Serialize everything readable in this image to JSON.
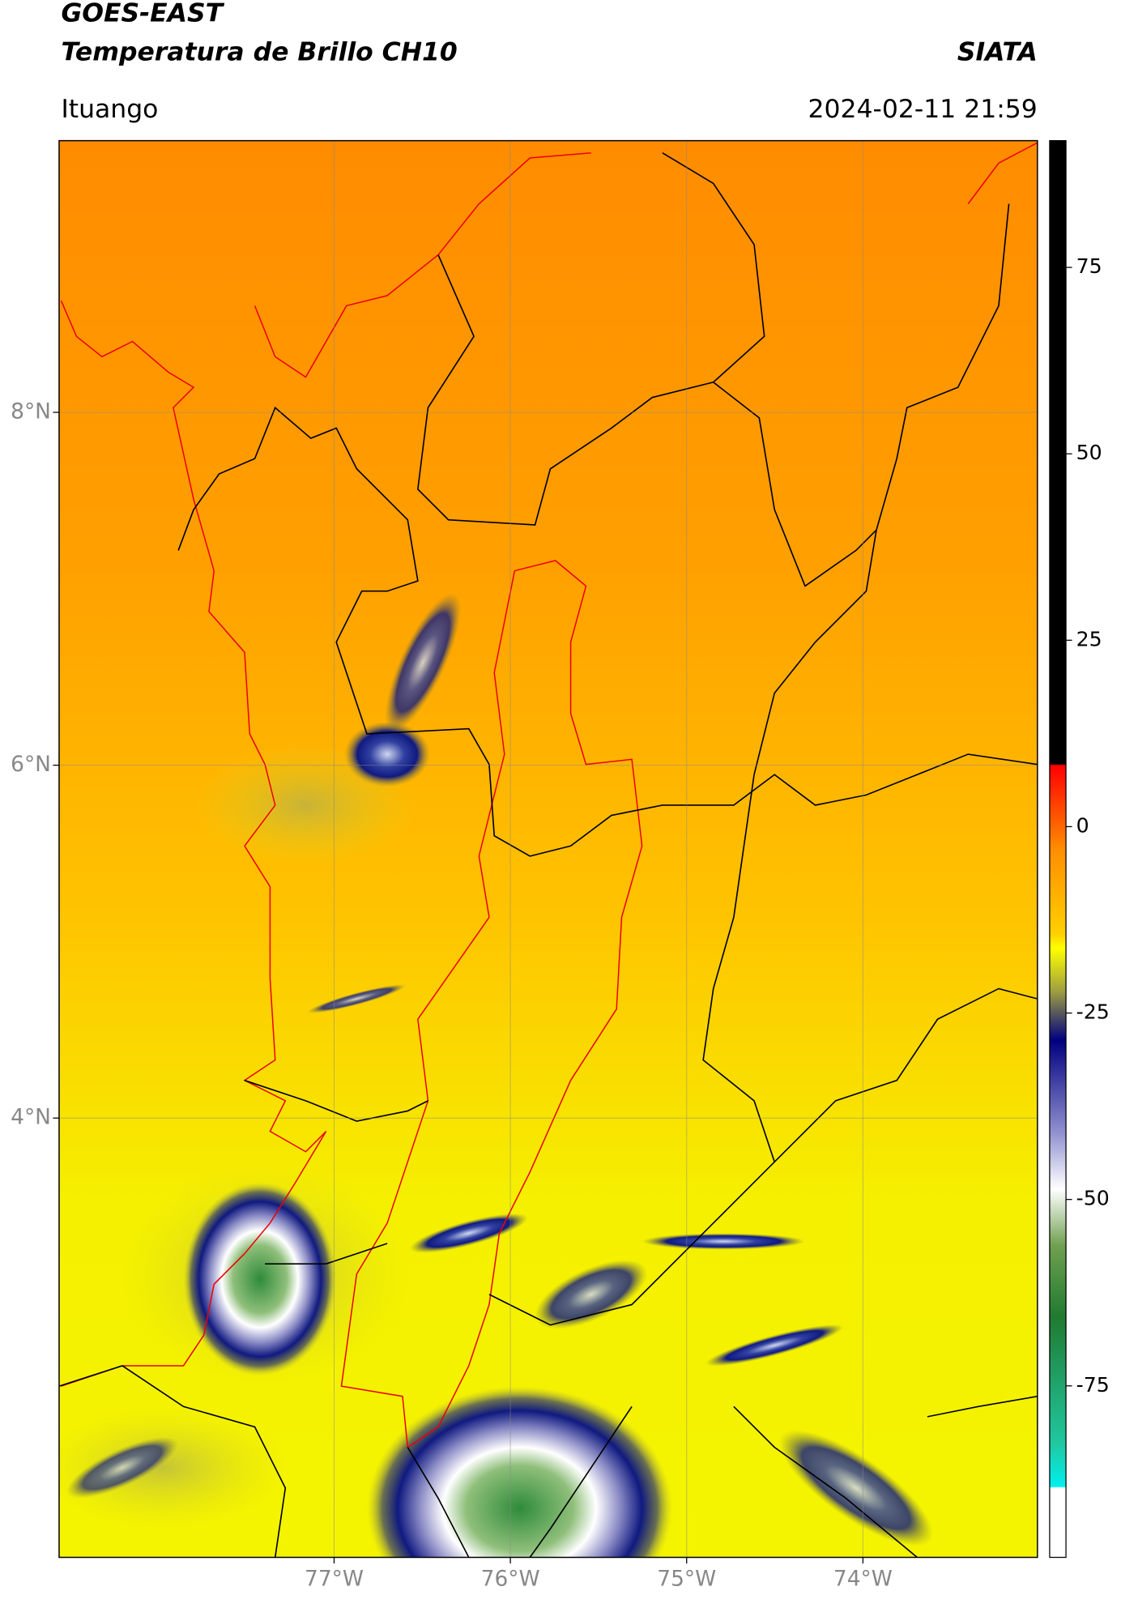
{
  "header": {
    "title": "GOES-EAST",
    "subtitle": "Temperatura de Brillo CH10",
    "source": "SIATA",
    "location": "Ituango",
    "datetime": "2024-02-11 21:59"
  },
  "map": {
    "xlim": [
      -78.56,
      -73.01
    ],
    "ylim": [
      1.51,
      9.54
    ],
    "xticks": [
      {
        "value": -77,
        "label": "77°W"
      },
      {
        "value": -76,
        "label": "76°W"
      },
      {
        "value": -75,
        "label": "75°W"
      },
      {
        "value": -74,
        "label": "74°W"
      }
    ],
    "yticks": [
      {
        "value": 4,
        "label": "4°N"
      },
      {
        "value": 6,
        "label": "6°N"
      },
      {
        "value": 8,
        "label": "8°N"
      }
    ],
    "grid": true
  },
  "colorbar": {
    "lim": [
      -98,
      92
    ],
    "ticks": [
      -75,
      -50,
      -25,
      0,
      25,
      50,
      75
    ]
  }
}
